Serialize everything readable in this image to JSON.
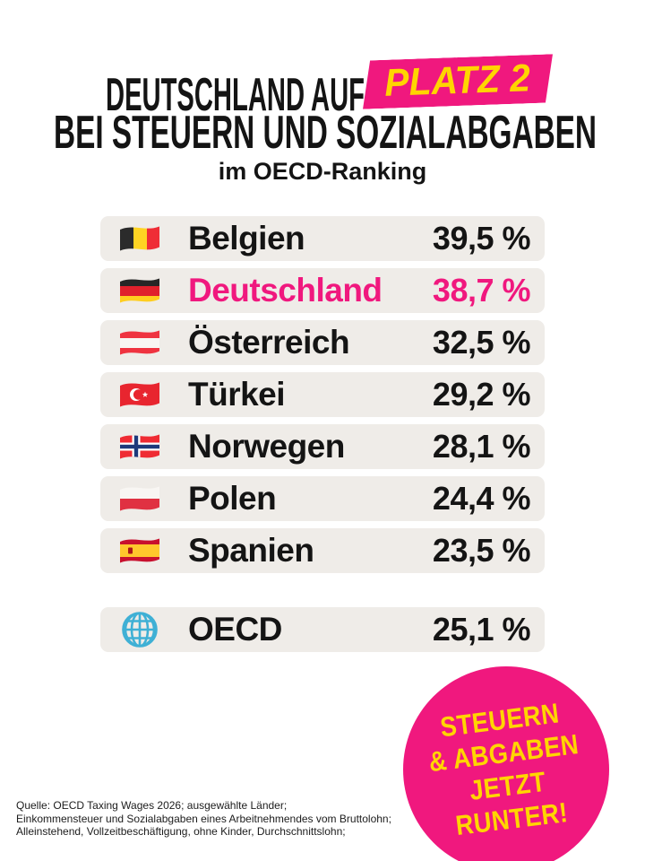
{
  "colors": {
    "magenta": "#F0187E",
    "yellow": "#FFD500",
    "row-bg": "#EFECE8",
    "ink": "#141414",
    "globe-cyan": "#3FB0D5"
  },
  "title": {
    "line1": "DEUTSCHLAND AUF",
    "highlight": "PLATZ 2",
    "line2": "BEI STEUERN UND SOZIALABGABEN",
    "subtitle": "im OECD-Ranking"
  },
  "ranking": {
    "rows": [
      {
        "country": "Belgien",
        "value": "39,5 %",
        "flag": "flag-belgium-icon",
        "highlighted": false
      },
      {
        "country": "Deutschland",
        "value": "38,7 %",
        "flag": "flag-germany-icon",
        "highlighted": true
      },
      {
        "country": "Österreich",
        "value": "32,5 %",
        "flag": "flag-austria-icon",
        "highlighted": false
      },
      {
        "country": "Türkei",
        "value": "29,2 %",
        "flag": "flag-turkey-icon",
        "highlighted": false
      },
      {
        "country": "Norwegen",
        "value": "28,1 %",
        "flag": "flag-norway-icon",
        "highlighted": false
      },
      {
        "country": "Polen",
        "value": "24,4 %",
        "flag": "flag-poland-icon",
        "highlighted": false
      },
      {
        "country": "Spanien",
        "value": "23,5 %",
        "flag": "flag-spain-icon",
        "highlighted": false
      }
    ],
    "summary": {
      "country": "OECD",
      "value": "25,1 %",
      "flag": "globe-icon",
      "highlighted": false
    }
  },
  "badge": {
    "lines": [
      "STEUERN",
      "& ABGABEN",
      "JETZT",
      "RUNTER!"
    ]
  },
  "source": {
    "lines": [
      "Quelle: OECD Taxing Wages 2026; ausgewählte Länder;",
      "Einkommensteuer und Sozialabgaben eines Arbeitnehmendes vom Bruttolohn;",
      "Alleinstehend, Vollzeitbeschäftigung, ohne Kinder, Durchschnittslohn;"
    ]
  },
  "chart_data": {
    "type": "table",
    "title": "Deutschland auf Platz 2 bei Steuern und Sozialabgaben im OECD-Ranking",
    "categories": [
      "Belgien",
      "Deutschland",
      "Österreich",
      "Türkei",
      "Norwegen",
      "Polen",
      "Spanien",
      "OECD"
    ],
    "values": [
      39.5,
      38.7,
      32.5,
      29.2,
      28.1,
      24.4,
      23.5,
      25.1
    ],
    "unit": "%",
    "highlighted_category": "Deutschland",
    "value_format": "comma-decimal"
  }
}
